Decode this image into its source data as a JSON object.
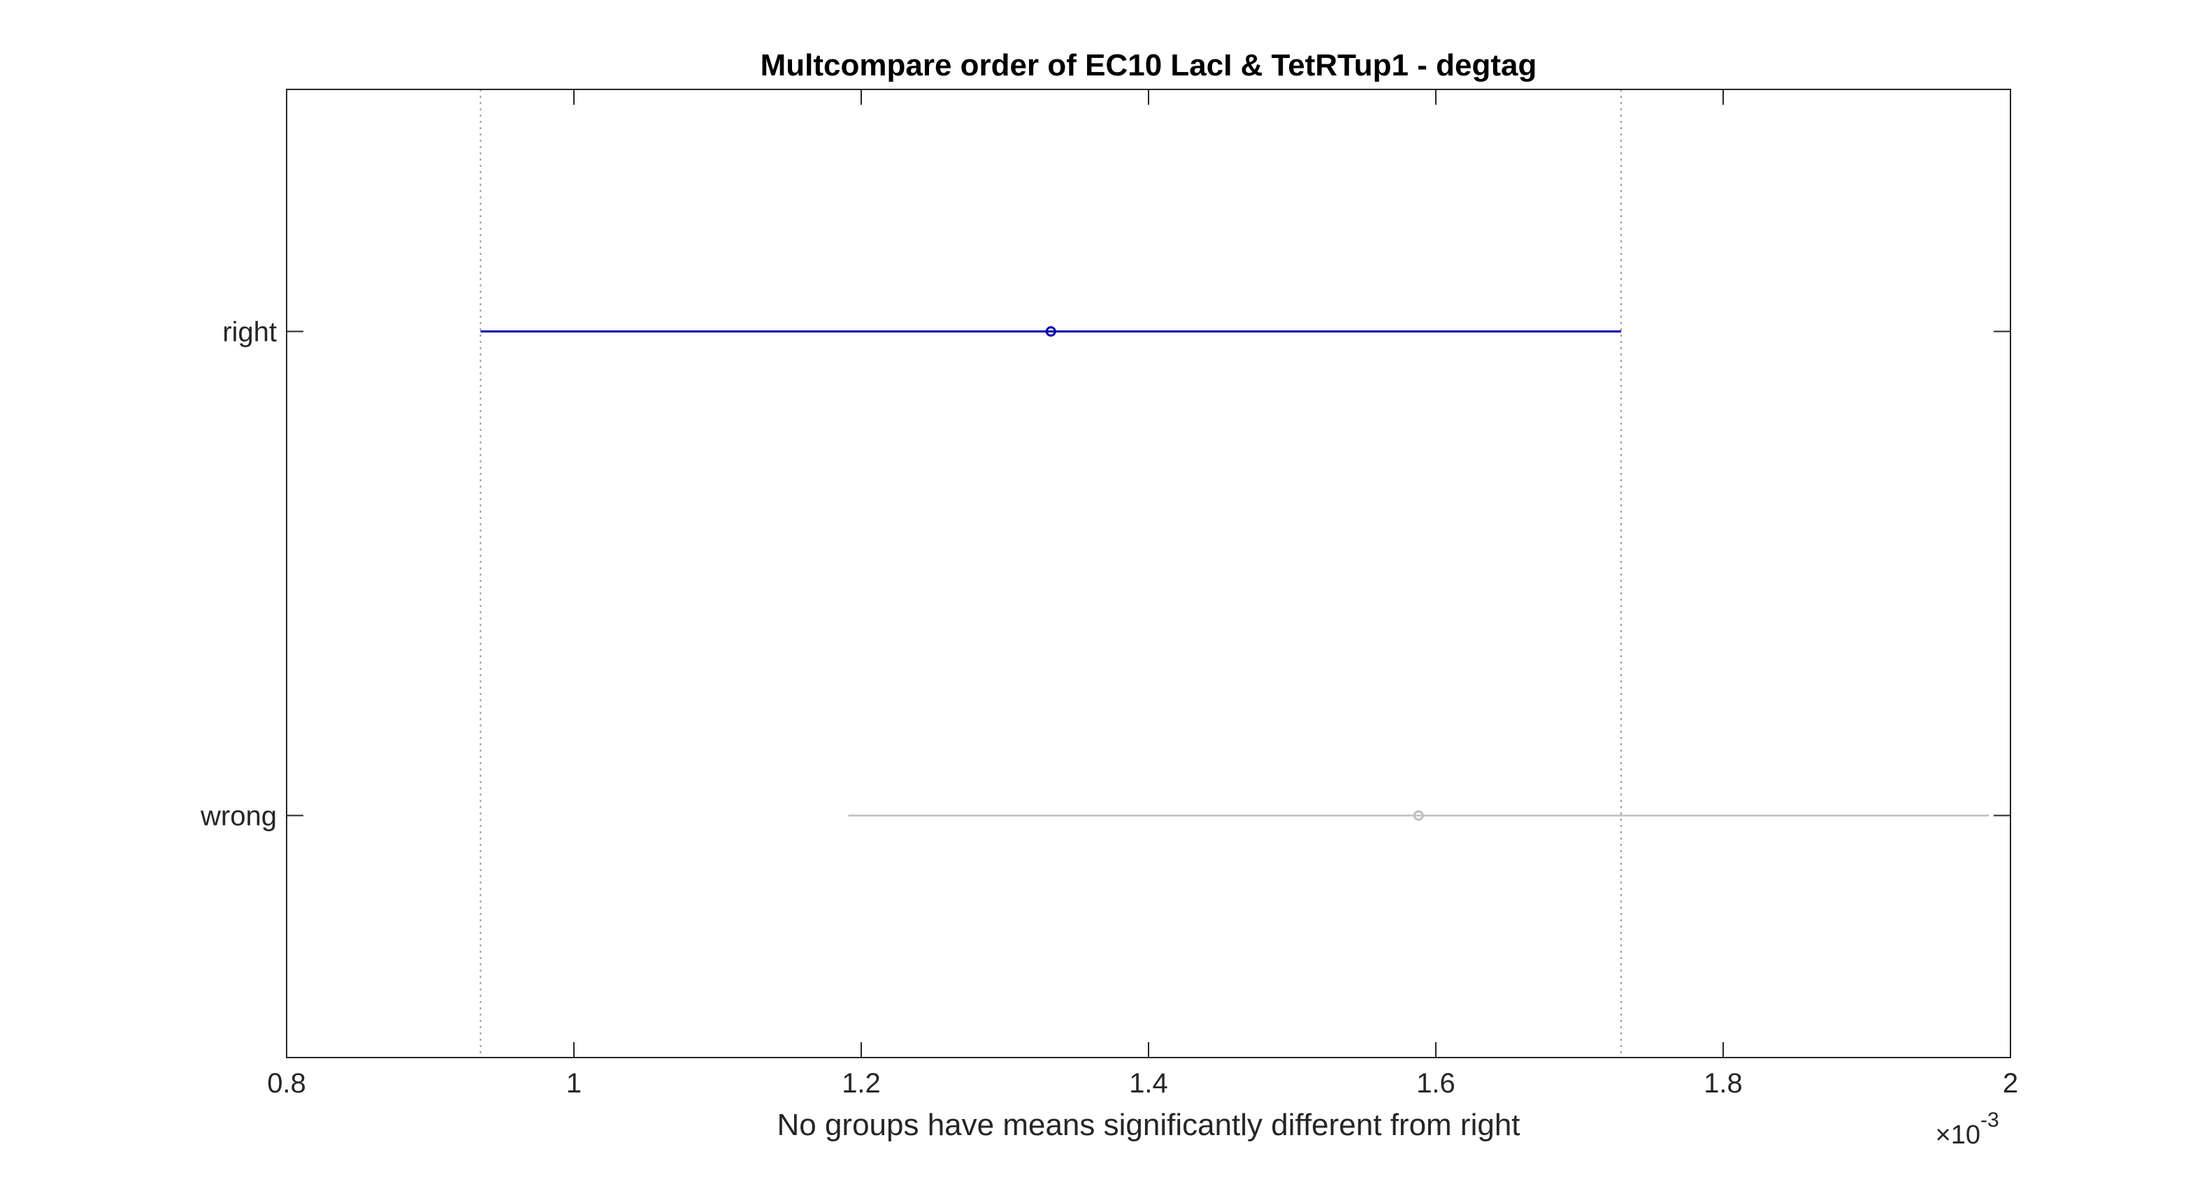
{
  "chart_data": {
    "type": "interval",
    "title": "Multcompare order of EC10 LacI & TetRTup1 - degtag",
    "xlabel": "No groups have means significantly different from right",
    "x_multiplier_prefix": "×10",
    "x_multiplier_exponent": "-3",
    "xlim": [
      0.8,
      2.0
    ],
    "x_ticks": [
      0.8,
      1.0,
      1.2,
      1.4,
      1.6,
      1.8,
      2.0
    ],
    "x_tick_labels": [
      "0.8",
      "1",
      "1.2",
      "1.4",
      "1.6",
      "1.8",
      "2"
    ],
    "groups": [
      {
        "name": "right",
        "mean": 1.332,
        "lower": 0.935,
        "upper": 1.729,
        "color": "#0000aa",
        "selected": true
      },
      {
        "name": "wrong",
        "mean": 1.588,
        "lower": 1.191,
        "upper": 1.985,
        "color": "#bfbfbf",
        "selected": false
      }
    ],
    "reference_lines": [
      0.935,
      1.729
    ],
    "grid": false,
    "legend": "none"
  }
}
